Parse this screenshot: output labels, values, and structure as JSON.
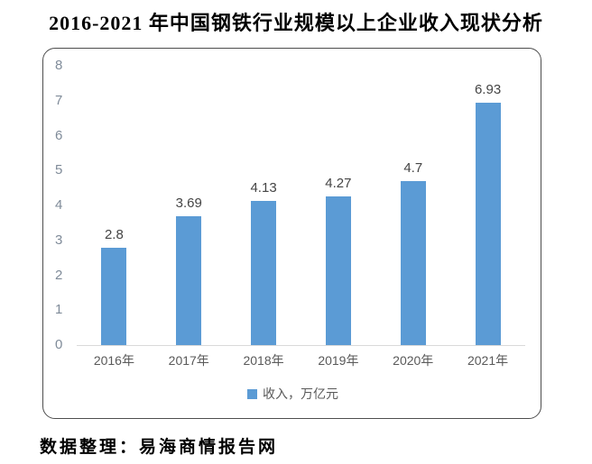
{
  "page": {
    "title": "2016-2021 年中国钢铁行业规模以上企业收入现状分析",
    "source": "数据整理：易海商情报告网"
  },
  "chart_data": {
    "type": "bar",
    "title": "2016-2021 年中国钢铁行业规模以上企业收入现状分析",
    "categories": [
      "2016年",
      "2017年",
      "2018年",
      "2019年",
      "2020年",
      "2021年"
    ],
    "values": [
      2.8,
      3.69,
      4.13,
      4.27,
      4.7,
      6.93
    ],
    "value_labels": [
      "2.8",
      "3.69",
      "4.13",
      "4.27",
      "4.7",
      "6.93"
    ],
    "legend": "收入，万亿元",
    "legend_position": "bottom",
    "xlabel": "",
    "ylabel": "",
    "ylim": [
      0,
      8
    ],
    "yticks": [
      0,
      1,
      2,
      3,
      4,
      5,
      6,
      7,
      8
    ],
    "grid": false,
    "colors": {
      "bar": "#5B9BD5",
      "value_label": "#444444",
      "y_axis_label": "#7f8b99",
      "x_axis_label": "#595959",
      "baseline": "#d9d9d9",
      "frame_border": "#4d4d4d"
    }
  }
}
